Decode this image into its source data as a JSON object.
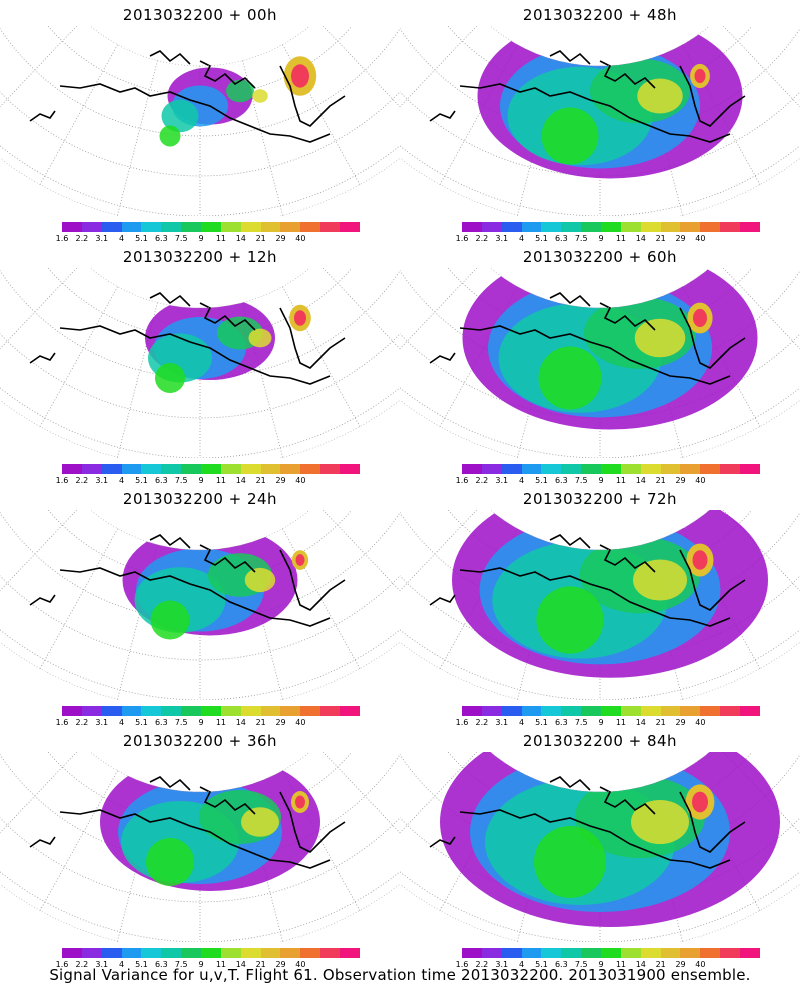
{
  "panels": [
    {
      "title": "2013032200 + 00h",
      "spread": 0.15,
      "hot": 0.9,
      "col": 0,
      "row": 0
    },
    {
      "title": "2013032200 + 12h",
      "spread": 0.3,
      "hot": 0.6,
      "col": 0,
      "row": 1
    },
    {
      "title": "2013032200 + 24h",
      "spread": 0.45,
      "hot": 0.45,
      "col": 0,
      "row": 2
    },
    {
      "title": "2013032200 + 36h",
      "spread": 0.6,
      "hot": 0.5,
      "col": 0,
      "row": 3
    },
    {
      "title": "2013032200 + 48h",
      "spread": 0.75,
      "hot": 0.55,
      "col": 1,
      "row": 0
    },
    {
      "title": "2013032200 + 60h",
      "spread": 0.85,
      "hot": 0.7,
      "col": 1,
      "row": 1
    },
    {
      "title": "2013032200 + 72h",
      "spread": 0.92,
      "hot": 0.75,
      "col": 1,
      "row": 2
    },
    {
      "title": "2013032200 + 84h",
      "spread": 1.0,
      "hot": 0.8,
      "col": 1,
      "row": 3
    }
  ],
  "colorbar": {
    "labels": [
      "1.6",
      "2.2",
      "3.1",
      "4",
      "5.1",
      "6.3",
      "7.5",
      "9",
      "11",
      "14",
      "21",
      "29",
      "40"
    ],
    "colors": [
      "#9e0fc8",
      "#8a2be2",
      "#2a5cf0",
      "#1e9bf0",
      "#16c7d8",
      "#10c8a8",
      "#18c85c",
      "#20dc20",
      "#9ee030",
      "#dcdc30",
      "#e0c030",
      "#e8a030",
      "#f07030",
      "#f03c5a",
      "#f0147c"
    ]
  },
  "footer": "Signal Variance for u,v,T. Flight 61. Observation time 2013032200. 2013031900 ensemble."
}
